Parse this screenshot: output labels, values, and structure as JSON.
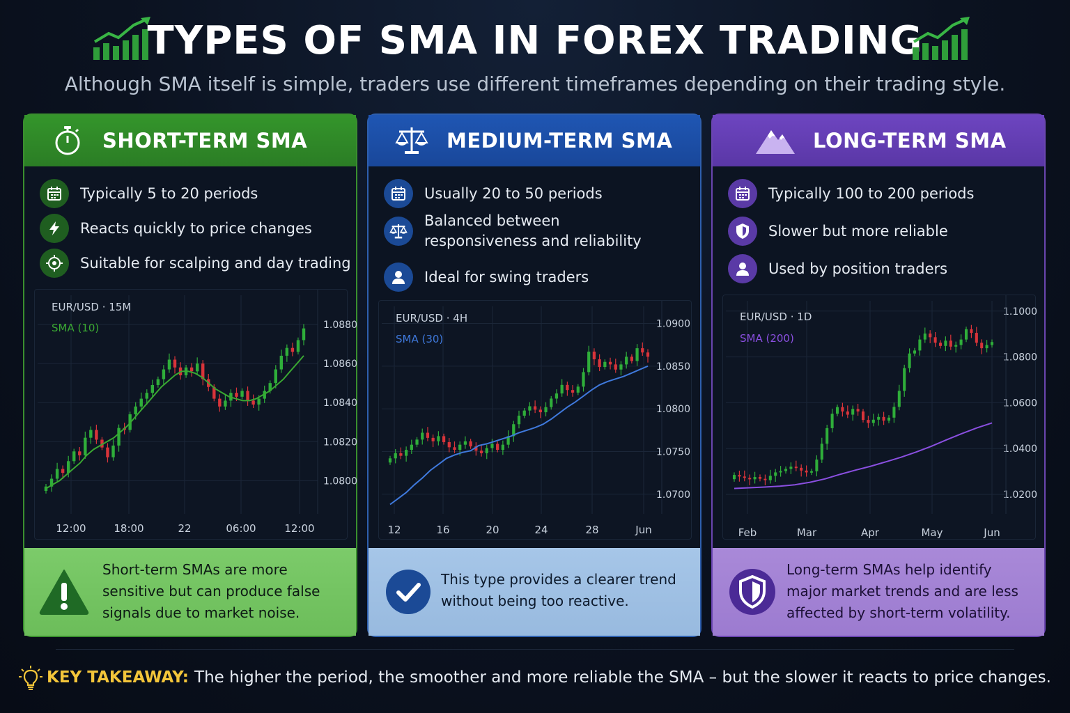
{
  "header": {
    "title": "TYPES OF SMA IN FOREX TRADING",
    "subtitle": "Although SMA itself is simple, traders use different timeframes depending on their trading style."
  },
  "colors": {
    "green": "#3aa832",
    "blue": "#2f6fd6",
    "purple": "#7b4fd0",
    "candle_up": "#2fae3a",
    "candle_down": "#d8343a",
    "sma_short": "#3aa832",
    "sma_medium": "#3f79dc",
    "sma_long": "#8a4fe0",
    "takeaway": "#f3c53a"
  },
  "cards": [
    {
      "title": "SHORT-TERM SMA",
      "icon": "stopwatch-icon",
      "bullets": [
        {
          "icon": "calendar-icon",
          "text": "Typically 5 to 20 periods"
        },
        {
          "icon": "lightning-icon",
          "text": "Reacts quickly to price changes"
        },
        {
          "icon": "target-icon",
          "text": "Suitable for scalping and day trading"
        }
      ],
      "note": "Short-term SMAs are more sensitive but can produce false signals due to market noise.",
      "note_icon": "warning-icon"
    },
    {
      "title": "MEDIUM-TERM SMA",
      "icon": "balance-scale-icon",
      "bullets": [
        {
          "icon": "calendar-icon",
          "text": "Usually 20 to 50 periods"
        },
        {
          "icon": "balance-scale-icon",
          "text": "Balanced between responsiveness and reliability"
        },
        {
          "icon": "user-icon",
          "text": "Ideal for swing traders"
        }
      ],
      "note": "This type provides a clearer trend without being too reactive.",
      "note_icon": "check-icon"
    },
    {
      "title": "LONG-TERM SMA",
      "icon": "mountain-icon",
      "bullets": [
        {
          "icon": "calendar-icon",
          "text": "Typically 100 to 200 periods"
        },
        {
          "icon": "shield-icon",
          "text": "Slower but more reliable"
        },
        {
          "icon": "user-icon",
          "text": "Used by position traders"
        }
      ],
      "note": "Long-term SMAs help identify major market trends and are less affected by short-term volatility.",
      "note_icon": "shield-icon"
    }
  ],
  "chart_data": [
    {
      "type": "candlestick",
      "pair": "EUR/USD",
      "timeframe": "15M",
      "sma_label": "SMA (10)",
      "x_tick_labels": [
        "12:00",
        "18:00",
        "22",
        "06:00",
        "12:00"
      ],
      "y_tick_labels": [
        "1.0880",
        "1.0860",
        "1.0840",
        "1.0820",
        "1.0800"
      ],
      "y_ticks": [
        1.088,
        1.086,
        1.084,
        1.082,
        1.08
      ],
      "ylim": [
        1.0783,
        1.0895
      ],
      "grid": true,
      "close": [
        1.0797,
        1.0801,
        1.0806,
        1.0804,
        1.081,
        1.0815,
        1.0813,
        1.0822,
        1.0826,
        1.0821,
        1.0817,
        1.0812,
        1.0818,
        1.0827,
        1.0826,
        1.0834,
        1.0838,
        1.0842,
        1.0845,
        1.0849,
        1.0852,
        1.0857,
        1.0862,
        1.0858,
        1.0854,
        1.0858,
        1.0856,
        1.086,
        1.0852,
        1.0848,
        1.0842,
        1.0838,
        1.0841,
        1.0845,
        1.0843,
        1.0846,
        1.0841,
        1.0839,
        1.0842,
        1.0846,
        1.085,
        1.0857,
        1.0864,
        1.0868,
        1.0866,
        1.0872,
        1.0878
      ],
      "sma": [
        1.0796,
        1.0798,
        1.08,
        1.0803,
        1.0806,
        1.0809,
        1.0813,
        1.0816,
        1.0818,
        1.082,
        1.0822,
        1.0825,
        1.0828,
        1.0832,
        1.0836,
        1.084,
        1.0844,
        1.0848,
        1.0851,
        1.0854,
        1.0856,
        1.0856,
        1.0855,
        1.0853,
        1.085,
        1.0847,
        1.0845,
        1.0843,
        1.0842,
        1.0841,
        1.0841,
        1.0842,
        1.0844,
        1.0846,
        1.0849,
        1.0852,
        1.0856,
        1.086,
        1.0864
      ]
    },
    {
      "type": "candlestick",
      "pair": "EUR/USD",
      "timeframe": "4H",
      "sma_label": "SMA (30)",
      "x_tick_labels": [
        "12",
        "16",
        "20",
        "24",
        "28",
        "Jun"
      ],
      "y_tick_labels": [
        "1.0900",
        "1.0850",
        "1.0800",
        "1.0750",
        "1.0700"
      ],
      "y_ticks": [
        1.09,
        1.085,
        1.08,
        1.075,
        1.07
      ],
      "ylim": [
        1.0677,
        1.092
      ],
      "grid": true,
      "close": [
        1.0742,
        1.0748,
        1.0745,
        1.0752,
        1.0758,
        1.0764,
        1.0772,
        1.0766,
        1.0762,
        1.0768,
        1.0761,
        1.0755,
        1.0752,
        1.0758,
        1.0762,
        1.0756,
        1.0751,
        1.0748,
        1.0754,
        1.0759,
        1.0752,
        1.0758,
        1.0768,
        1.0782,
        1.0792,
        1.0798,
        1.0803,
        1.0799,
        1.0796,
        1.0802,
        1.0812,
        1.0818,
        1.0828,
        1.0822,
        1.0819,
        1.0826,
        1.0843,
        1.0867,
        1.0858,
        1.0849,
        1.0855,
        1.0852,
        1.0846,
        1.0852,
        1.0861,
        1.0856,
        1.0871,
        1.0866,
        1.0861
      ],
      "sma": [
        1.0688,
        1.0695,
        1.0702,
        1.0711,
        1.0719,
        1.0728,
        1.0735,
        1.0742,
        1.0746,
        1.0749,
        1.0751,
        1.0757,
        1.0759,
        1.0762,
        1.0765,
        1.0768,
        1.0772,
        1.0775,
        1.0778,
        1.0782,
        1.0788,
        1.0795,
        1.0802,
        1.0808,
        1.0815,
        1.0822,
        1.0828,
        1.0832,
        1.0835,
        1.0838,
        1.0842,
        1.0846,
        1.085
      ]
    },
    {
      "type": "candlestick",
      "pair": "EUR/USD",
      "timeframe": "1D",
      "sma_label": "SMA (200)",
      "x_tick_labels": [
        "Feb",
        "Mar",
        "Apr",
        "May",
        "Jun"
      ],
      "y_tick_labels": [
        "1.1000",
        "1.0800",
        "1.0600",
        "1.0400",
        "1.0200"
      ],
      "y_ticks": [
        1.1,
        1.08,
        1.06,
        1.04,
        1.02
      ],
      "ylim": [
        1.0115,
        1.1045
      ],
      "grid": true,
      "close": [
        1.0285,
        1.0278,
        1.0272,
        1.0266,
        1.0276,
        1.0268,
        1.0262,
        1.0281,
        1.0296,
        1.0302,
        1.0311,
        1.0321,
        1.0316,
        1.0304,
        1.0296,
        1.0301,
        1.0352,
        1.0421,
        1.0489,
        1.0552,
        1.0581,
        1.0562,
        1.0548,
        1.0573,
        1.0562,
        1.0525,
        1.0512,
        1.0526,
        1.0538,
        1.0522,
        1.0535,
        1.0582,
        1.0652,
        1.0751,
        1.0815,
        1.0828,
        1.0876,
        1.0902,
        1.0886,
        1.0862,
        1.0848,
        1.0871,
        1.0845,
        1.0852,
        1.0876,
        1.0921,
        1.0905,
        1.0862,
        1.0838,
        1.0852,
        1.0865
      ],
      "sma": [
        1.0226,
        1.0229,
        1.0232,
        1.0236,
        1.0242,
        1.0253,
        1.0268,
        1.0288,
        1.0306,
        1.0323,
        1.0342,
        1.0362,
        1.0385,
        1.041,
        1.0438,
        1.0465,
        1.049,
        1.0512
      ]
    }
  ],
  "takeaway": {
    "label": "KEY TAKEAWAY:",
    "text": "The higher the period, the smoother and more reliable the SMA – but the slower it reacts to price changes."
  }
}
